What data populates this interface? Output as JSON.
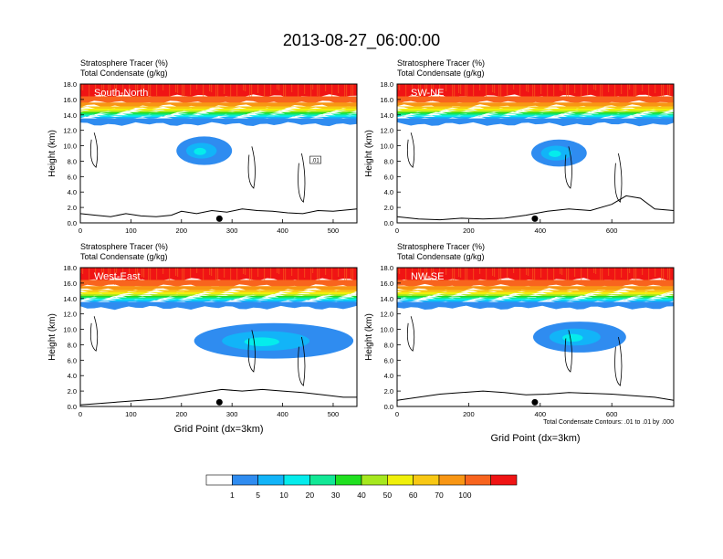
{
  "title": "2013-08-27_06:00:00",
  "colors": {
    "levels": [
      "#ffffff",
      "#2f8cf0",
      "#12b4f8",
      "#05ecec",
      "#12e896",
      "#20e020",
      "#a6e81e",
      "#f0f00a",
      "#f8c814",
      "#f89614",
      "#f8641e",
      "#f01414"
    ],
    "line": "#000000"
  },
  "colorbar": {
    "labels": [
      "1",
      "5",
      "10",
      "20",
      "30",
      "40",
      "50",
      "60",
      "70",
      "100"
    ]
  },
  "chart_data": [
    {
      "type": "heatmap",
      "panel_label": "South-North",
      "title_lines": [
        "Stratosphere Tracer   (%)",
        "Total Condensate   (g/kg)"
      ],
      "xlabel": "",
      "ylabel": "Height (km)",
      "xlim": [
        0,
        547
      ],
      "ylim": [
        0,
        18
      ],
      "x_ticks": [
        "0",
        "100",
        "200",
        "300",
        "400",
        "500"
      ],
      "y_ticks": [
        "0.0",
        "2.0",
        "4.0",
        "6.0",
        "8.0",
        "10.0",
        "12.0",
        "14.0",
        "16.0",
        "18.0"
      ],
      "tropopause_km": 13.6,
      "tracer_blob": {
        "x_range": [
          190,
          300
        ],
        "z_range": [
          7.5,
          11.2
        ]
      },
      "terrain": {
        "x": [
          0,
          30,
          60,
          90,
          120,
          150,
          180,
          200,
          230,
          260,
          290,
          320,
          350,
          380,
          410,
          440,
          470,
          500,
          547
        ],
        "z": [
          1.2,
          1.0,
          0.8,
          1.2,
          0.9,
          0.8,
          1.0,
          1.5,
          1.2,
          1.6,
          1.4,
          1.8,
          1.6,
          1.5,
          1.3,
          1.2,
          1.6,
          1.5,
          1.8
        ]
      },
      "marker_x": 275,
      "contour_label": ".01",
      "footnote": "",
      "show_xlabel": false
    },
    {
      "type": "heatmap",
      "panel_label": "SW-NE",
      "title_lines": [
        "Stratosphere Tracer   (%)",
        "Total Condensate   (g/kg)"
      ],
      "xlabel": "",
      "ylabel": "Height (km)",
      "xlim": [
        0,
        773
      ],
      "ylim": [
        0,
        18
      ],
      "x_ticks": [
        "0",
        "200",
        "400",
        "600"
      ],
      "y_ticks": [
        "0.0",
        "2.0",
        "4.0",
        "6.0",
        "8.0",
        "10.0",
        "12.0",
        "14.0",
        "16.0",
        "18.0"
      ],
      "tropopause_km": 13.6,
      "tracer_blob": {
        "x_range": [
          375,
          530
        ],
        "z_range": [
          7.3,
          10.8
        ]
      },
      "terrain": {
        "x": [
          0,
          60,
          120,
          180,
          240,
          300,
          360,
          420,
          480,
          540,
          600,
          640,
          680,
          720,
          773
        ],
        "z": [
          0.8,
          0.5,
          0.4,
          0.6,
          0.5,
          0.6,
          1.0,
          1.5,
          1.8,
          1.6,
          2.4,
          3.5,
          3.2,
          1.8,
          1.6
        ]
      },
      "marker_x": 385,
      "contour_label": "",
      "footnote": "",
      "show_xlabel": false
    },
    {
      "type": "heatmap",
      "panel_label": "West-East",
      "title_lines": [
        "Stratosphere Tracer   (%)",
        "Total Condensate   (g/kg)"
      ],
      "xlabel": "Grid Point (dx=3km)",
      "ylabel": "Height (km)",
      "xlim": [
        0,
        547
      ],
      "ylim": [
        0,
        18
      ],
      "x_ticks": [
        "0",
        "100",
        "200",
        "300",
        "400",
        "500"
      ],
      "y_ticks": [
        "0.0",
        "2.0",
        "4.0",
        "6.0",
        "8.0",
        "10.0",
        "12.0",
        "14.0",
        "16.0",
        "18.0"
      ],
      "tropopause_km": 13.6,
      "tracer_blob": {
        "x_range": [
          225,
          540
        ],
        "z_range": [
          6.2,
          10.8
        ]
      },
      "terrain": {
        "x": [
          0,
          40,
          80,
          120,
          160,
          200,
          240,
          280,
          320,
          360,
          400,
          440,
          480,
          520,
          547
        ],
        "z": [
          0.2,
          0.4,
          0.6,
          0.8,
          1.0,
          1.4,
          1.8,
          2.2,
          2.0,
          2.2,
          2.0,
          1.8,
          1.5,
          1.2,
          1.2
        ]
      },
      "marker_x": 275,
      "contour_label": "",
      "footnote": "",
      "show_xlabel": true
    },
    {
      "type": "heatmap",
      "panel_label": "NW-SE",
      "title_lines": [
        "Stratosphere Tracer   (%)",
        "Total Condensate   (g/kg)"
      ],
      "xlabel": "Grid Point (dx=3km)",
      "ylabel": "Height (km)",
      "xlim": [
        0,
        773
      ],
      "ylim": [
        0,
        18
      ],
      "x_ticks": [
        "0",
        "200",
        "400",
        "600"
      ],
      "y_ticks": [
        "0.0",
        "2.0",
        "4.0",
        "6.0",
        "8.0",
        "10.0",
        "12.0",
        "14.0",
        "16.0",
        "18.0"
      ],
      "tropopause_km": 13.6,
      "tracer_blob": {
        "x_range": [
          380,
          640
        ],
        "z_range": [
          7.0,
          11.0
        ]
      },
      "terrain": {
        "x": [
          0,
          60,
          120,
          180,
          240,
          300,
          360,
          420,
          480,
          540,
          600,
          660,
          720,
          773
        ],
        "z": [
          0.8,
          1.2,
          1.6,
          1.8,
          2.0,
          1.8,
          1.5,
          1.6,
          1.8,
          1.7,
          1.6,
          1.4,
          1.2,
          0.8
        ]
      },
      "marker_x": 385,
      "contour_label": "",
      "footnote": "Total Condensate Contours: .01 to .01 by .000",
      "show_xlabel": true
    }
  ]
}
